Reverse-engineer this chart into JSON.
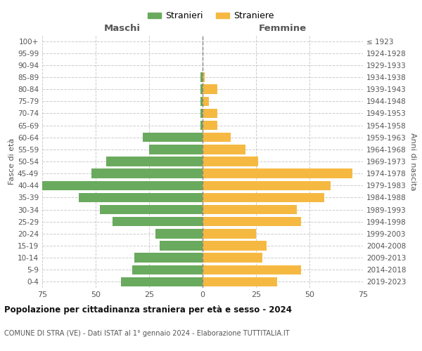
{
  "age_groups": [
    "0-4",
    "5-9",
    "10-14",
    "15-19",
    "20-24",
    "25-29",
    "30-34",
    "35-39",
    "40-44",
    "45-49",
    "50-54",
    "55-59",
    "60-64",
    "65-69",
    "70-74",
    "75-79",
    "80-84",
    "85-89",
    "90-94",
    "95-99",
    "100+"
  ],
  "birth_years": [
    "2019-2023",
    "2014-2018",
    "2009-2013",
    "2004-2008",
    "1999-2003",
    "1994-1998",
    "1989-1993",
    "1984-1988",
    "1979-1983",
    "1974-1978",
    "1969-1973",
    "1964-1968",
    "1959-1963",
    "1954-1958",
    "1949-1953",
    "1944-1948",
    "1939-1943",
    "1934-1938",
    "1929-1933",
    "1924-1928",
    "≤ 1923"
  ],
  "males": [
    38,
    33,
    32,
    20,
    22,
    42,
    48,
    58,
    75,
    52,
    45,
    25,
    28,
    1,
    1,
    1,
    1,
    1,
    0,
    0,
    0
  ],
  "females": [
    35,
    46,
    28,
    30,
    25,
    46,
    44,
    57,
    60,
    70,
    26,
    20,
    13,
    7,
    7,
    3,
    7,
    1,
    0,
    0,
    0
  ],
  "male_color": "#6aaa5e",
  "female_color": "#f5b942",
  "title": "Popolazione per cittadinanza straniera per età e sesso - 2024",
  "subtitle": "COMUNE DI STRA (VE) - Dati ISTAT al 1° gennaio 2024 - Elaborazione TUTTITALIA.IT",
  "xlabel_left": "Maschi",
  "xlabel_right": "Femmine",
  "ylabel_left": "Fasce di età",
  "ylabel_right": "Anni di nascita",
  "legend_male": "Stranieri",
  "legend_female": "Straniere",
  "xlim": 75,
  "background_color": "#ffffff",
  "grid_color": "#cccccc"
}
